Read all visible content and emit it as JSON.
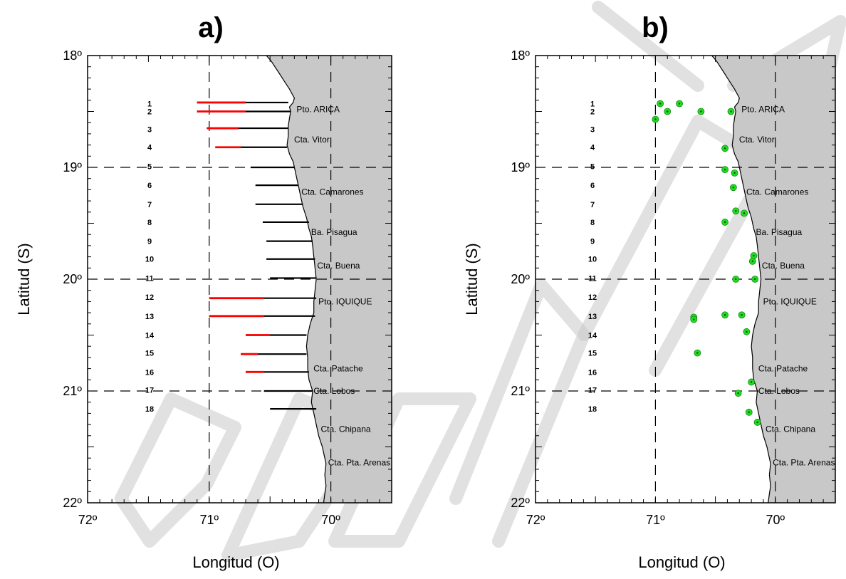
{
  "panels": [
    {
      "id": "a",
      "letter": "a)",
      "xlabel": "Longitud (O)",
      "ylabel": "Latitud (S)",
      "xlim": [
        72,
        69.5
      ],
      "ylim": [
        22,
        18
      ],
      "x_ticks": [
        {
          "value": 72,
          "label": "72º"
        },
        {
          "value": 71,
          "label": "71º"
        },
        {
          "value": 70,
          "label": "70º"
        }
      ],
      "y_ticks": [
        {
          "value": 18,
          "label": "18º"
        },
        {
          "value": 19,
          "label": "19º"
        },
        {
          "value": 20,
          "label": "20º"
        },
        {
          "value": 21,
          "label": "21º"
        },
        {
          "value": 22,
          "label": "22º"
        }
      ],
      "transect_lines": [
        {
          "lat": 18.42,
          "lon_start": 71.1,
          "lon_end": 70.35,
          "red_from": 70.7
        },
        {
          "lat": 18.5,
          "lon_start": 71.1,
          "lon_end": 70.33,
          "red_from": 70.7
        },
        {
          "lat": 18.65,
          "lon_start": 71.02,
          "lon_end": 70.35,
          "red_from": 70.76
        },
        {
          "lat": 18.82,
          "lon_start": 70.95,
          "lon_end": 70.36,
          "red_from": 70.74
        },
        {
          "lat": 19.0,
          "lon_start": 70.66,
          "lon_end": 70.3
        },
        {
          "lat": 19.16,
          "lon_start": 70.62,
          "lon_end": 70.27
        },
        {
          "lat": 19.33,
          "lon_start": 70.62,
          "lon_end": 70.23
        },
        {
          "lat": 19.49,
          "lon_start": 70.56,
          "lon_end": 70.18
        },
        {
          "lat": 19.66,
          "lon_start": 70.53,
          "lon_end": 70.15
        },
        {
          "lat": 19.82,
          "lon_start": 70.53,
          "lon_end": 70.13
        },
        {
          "lat": 19.99,
          "lon_start": 70.5,
          "lon_end": 70.12
        },
        {
          "lat": 20.17,
          "lon_start": 71.0,
          "lon_end": 70.12,
          "red_from": 70.55
        },
        {
          "lat": 20.33,
          "lon_start": 71.0,
          "lon_end": 70.13,
          "red_from": 70.55
        },
        {
          "lat": 20.5,
          "lon_start": 70.7,
          "lon_end": 70.2,
          "red_from": 70.5
        },
        {
          "lat": 20.67,
          "lon_start": 70.74,
          "lon_end": 70.2,
          "red_from": 70.6
        },
        {
          "lat": 20.83,
          "lon_start": 70.7,
          "lon_end": 70.18,
          "red_from": 70.55
        },
        {
          "lat": 21.0,
          "lon_start": 70.55,
          "lon_end": 70.15
        },
        {
          "lat": 21.16,
          "lon_start": 70.5,
          "lon_end": 70.12
        }
      ]
    },
    {
      "id": "b",
      "letter": "b)",
      "xlabel": "Longitud (O)",
      "ylabel": "Latitud (S)",
      "xlim": [
        72,
        69.5
      ],
      "ylim": [
        22,
        18
      ],
      "x_ticks": [
        {
          "value": 72,
          "label": "72º"
        },
        {
          "value": 71,
          "label": "71º"
        },
        {
          "value": 70,
          "label": "70º"
        }
      ],
      "y_ticks": [
        {
          "value": 18,
          "label": "18º"
        },
        {
          "value": 19,
          "label": "19º"
        },
        {
          "value": 20,
          "label": "20º"
        },
        {
          "value": 21,
          "label": "21º"
        },
        {
          "value": 22,
          "label": "22º"
        }
      ],
      "stations": [
        {
          "lon": 70.96,
          "lat": 18.43
        },
        {
          "lon": 70.8,
          "lat": 18.43
        },
        {
          "lon": 70.9,
          "lat": 18.5
        },
        {
          "lon": 71.0,
          "lat": 18.57
        },
        {
          "lon": 70.62,
          "lat": 18.5
        },
        {
          "lon": 70.37,
          "lat": 18.5
        },
        {
          "lon": 70.42,
          "lat": 18.83
        },
        {
          "lon": 70.42,
          "lat": 19.02
        },
        {
          "lon": 70.34,
          "lat": 19.05
        },
        {
          "lon": 70.35,
          "lat": 19.18
        },
        {
          "lon": 70.33,
          "lat": 19.39
        },
        {
          "lon": 70.26,
          "lat": 19.41
        },
        {
          "lon": 70.42,
          "lat": 19.49
        },
        {
          "lon": 70.18,
          "lat": 19.79
        },
        {
          "lon": 70.19,
          "lat": 19.84
        },
        {
          "lon": 70.33,
          "lat": 20.0
        },
        {
          "lon": 70.17,
          "lat": 20.0
        },
        {
          "lon": 70.42,
          "lat": 20.32
        },
        {
          "lon": 70.28,
          "lat": 20.32
        },
        {
          "lon": 70.68,
          "lat": 20.34
        },
        {
          "lon": 70.68,
          "lat": 20.36
        },
        {
          "lon": 70.24,
          "lat": 20.47
        },
        {
          "lon": 70.65,
          "lat": 20.66
        },
        {
          "lon": 70.2,
          "lat": 20.92
        },
        {
          "lon": 70.31,
          "lat": 21.02
        },
        {
          "lon": 70.22,
          "lat": 21.19
        },
        {
          "lon": 70.15,
          "lat": 21.28
        }
      ]
    }
  ],
  "coastline": [
    {
      "lat": 18.0,
      "lon": 70.53
    },
    {
      "lat": 18.05,
      "lon": 70.49
    },
    {
      "lat": 18.1,
      "lon": 70.46
    },
    {
      "lat": 18.15,
      "lon": 70.43
    },
    {
      "lat": 18.2,
      "lon": 70.4
    },
    {
      "lat": 18.25,
      "lon": 70.37
    },
    {
      "lat": 18.3,
      "lon": 70.34
    },
    {
      "lat": 18.34,
      "lon": 70.32
    },
    {
      "lat": 18.38,
      "lon": 70.3
    },
    {
      "lat": 18.42,
      "lon": 70.31
    },
    {
      "lat": 18.46,
      "lon": 70.34
    },
    {
      "lat": 18.5,
      "lon": 70.33
    },
    {
      "lat": 18.56,
      "lon": 70.34
    },
    {
      "lat": 18.63,
      "lon": 70.35
    },
    {
      "lat": 18.72,
      "lon": 70.35
    },
    {
      "lat": 18.8,
      "lon": 70.36
    },
    {
      "lat": 18.88,
      "lon": 70.34
    },
    {
      "lat": 18.95,
      "lon": 70.31
    },
    {
      "lat": 19.05,
      "lon": 70.29
    },
    {
      "lat": 19.15,
      "lon": 70.27
    },
    {
      "lat": 19.25,
      "lon": 70.25
    },
    {
      "lat": 19.35,
      "lon": 70.23
    },
    {
      "lat": 19.45,
      "lon": 70.2
    },
    {
      "lat": 19.55,
      "lon": 70.18
    },
    {
      "lat": 19.62,
      "lon": 70.16
    },
    {
      "lat": 19.7,
      "lon": 70.15
    },
    {
      "lat": 19.8,
      "lon": 70.14
    },
    {
      "lat": 19.9,
      "lon": 70.13
    },
    {
      "lat": 20.0,
      "lon": 70.12
    },
    {
      "lat": 20.1,
      "lon": 70.13
    },
    {
      "lat": 20.2,
      "lon": 70.14
    },
    {
      "lat": 20.3,
      "lon": 70.14
    },
    {
      "lat": 20.4,
      "lon": 70.17
    },
    {
      "lat": 20.5,
      "lon": 70.19
    },
    {
      "lat": 20.6,
      "lon": 70.2
    },
    {
      "lat": 20.7,
      "lon": 70.19
    },
    {
      "lat": 20.8,
      "lon": 70.19
    },
    {
      "lat": 20.9,
      "lon": 70.18
    },
    {
      "lat": 21.0,
      "lon": 70.15
    },
    {
      "lat": 21.1,
      "lon": 70.16
    },
    {
      "lat": 21.2,
      "lon": 70.14
    },
    {
      "lat": 21.3,
      "lon": 70.12
    },
    {
      "lat": 21.4,
      "lon": 70.1
    },
    {
      "lat": 21.5,
      "lon": 70.07
    },
    {
      "lat": 21.6,
      "lon": 70.05
    },
    {
      "lat": 21.65,
      "lon": 70.04
    },
    {
      "lat": 21.75,
      "lon": 70.05
    },
    {
      "lat": 21.85,
      "lon": 70.04
    },
    {
      "lat": 21.92,
      "lon": 70.05
    },
    {
      "lat": 22.0,
      "lon": 70.06
    }
  ],
  "place_labels": [
    {
      "name": "Pto. ARICA",
      "lon": 70.3,
      "lat": 18.48
    },
    {
      "name": "Cta. Vitor",
      "lon": 70.32,
      "lat": 18.75
    },
    {
      "name": "Cta. Camarones",
      "lon": 70.26,
      "lat": 19.22
    },
    {
      "name": "Ba. Pisagua",
      "lon": 70.18,
      "lat": 19.58
    },
    {
      "name": "Cta. Buena",
      "lon": 70.13,
      "lat": 19.88
    },
    {
      "name": "Pto. IQUIQUE",
      "lon": 70.12,
      "lat": 20.2
    },
    {
      "name": "Cta. Patache",
      "lon": 70.16,
      "lat": 20.8
    },
    {
      "name": "Cta. Lobos",
      "lon": 70.16,
      "lat": 21.0
    },
    {
      "name": "Cta. Chipana",
      "lon": 70.1,
      "lat": 21.34
    },
    {
      "name": "Cta. Pta. Arenas",
      "lon": 70.04,
      "lat": 21.64
    }
  ],
  "transect_numbers": [
    {
      "label": "1",
      "lat": 18.43
    },
    {
      "label": "2",
      "lat": 18.5
    },
    {
      "label": "3",
      "lat": 18.66
    },
    {
      "label": "4",
      "lat": 18.82
    },
    {
      "label": "5",
      "lat": 18.99
    },
    {
      "label": "6",
      "lat": 19.16
    },
    {
      "label": "7",
      "lat": 19.33
    },
    {
      "label": "8",
      "lat": 19.49
    },
    {
      "label": "9",
      "lat": 19.66
    },
    {
      "label": "10",
      "lat": 19.82
    },
    {
      "label": "11",
      "lat": 19.99
    },
    {
      "label": "12",
      "lat": 20.16
    },
    {
      "label": "13",
      "lat": 20.33
    },
    {
      "label": "14",
      "lat": 20.5
    },
    {
      "label": "15",
      "lat": 20.66
    },
    {
      "label": "16",
      "lat": 20.83
    },
    {
      "label": "17",
      "lat": 20.99
    },
    {
      "label": "18",
      "lat": 21.16
    }
  ],
  "colors": {
    "land": "#c8c8c8",
    "coastline": "#000000",
    "transect_black": "#000000",
    "transect_red": "#ff0000",
    "station_green": "#22dd22",
    "station_dot": "#004400",
    "gridline": "#000000",
    "watermark": "#c8c8c8"
  }
}
